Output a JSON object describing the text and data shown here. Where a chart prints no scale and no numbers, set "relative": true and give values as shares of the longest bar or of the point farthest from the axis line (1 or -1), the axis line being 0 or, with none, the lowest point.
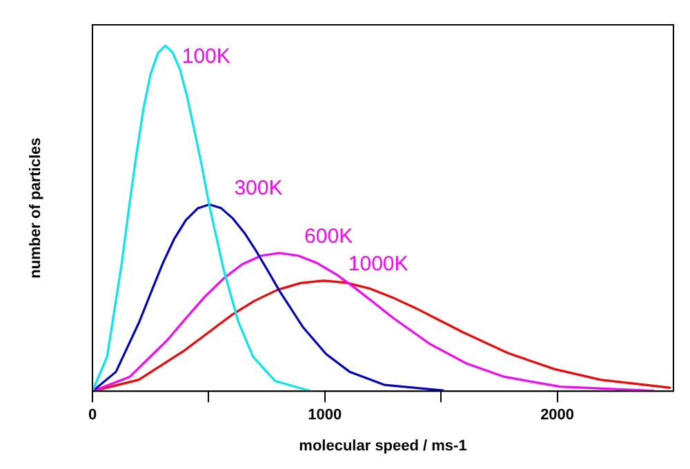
{
  "chart_data": {
    "type": "line",
    "relative": true,
    "xlabel": "molecular speed / ms-1",
    "ylabel": "number of particles",
    "xlim": [
      0,
      2500
    ],
    "xticks": [
      0,
      {
        "value": 500,
        "label": null
      },
      1000,
      {
        "value": 1500,
        "label": null
      },
      2000
    ],
    "tick_labels": "x",
    "grid": false,
    "legend": false,
    "marker": "none",
    "line_style": "solid",
    "series": [
      {
        "name": "100K",
        "color": "#00e8f0",
        "x": [
          0,
          63,
          126,
          157,
          188,
          220,
          251,
          283,
          314,
          345,
          377,
          408,
          440,
          471,
          502,
          565,
          628,
          691,
          785,
          942
        ],
        "values": [
          0,
          0.1,
          0.37,
          0.53,
          0.68,
          0.82,
          0.92,
          0.98,
          1,
          0.98,
          0.93,
          0.85,
          0.75,
          0.65,
          0.54,
          0.35,
          0.2,
          0.1,
          0.03,
          0.0
        ]
      },
      {
        "name": "300K",
        "color": "#0000d0",
        "x": [
          0,
          101,
          201,
          252,
          302,
          352,
          402,
          453,
          503,
          553,
          604,
          654,
          704,
          755,
          805,
          905,
          1006,
          1107,
          1258,
          1509
        ],
        "values": [
          0,
          0.056,
          0.2,
          0.286,
          0.369,
          0.441,
          0.495,
          0.529,
          0.54,
          0.53,
          0.5,
          0.458,
          0.406,
          0.348,
          0.29,
          0.186,
          0.107,
          0.056,
          0.018,
          0.002
        ]
      },
      {
        "name": "600K",
        "color": "#ff00ff",
        "x": [
          0,
          161,
          322,
          403,
          483,
          564,
          644,
          725,
          805,
          886,
          966,
          1047,
          1127,
          1208,
          1288,
          1449,
          1610,
          1771,
          2013,
          2415
        ],
        "values": [
          0,
          0.042,
          0.148,
          0.212,
          0.273,
          0.326,
          0.367,
          0.392,
          0.4,
          0.392,
          0.371,
          0.339,
          0.3,
          0.258,
          0.215,
          0.138,
          0.08,
          0.042,
          0.013,
          0.001
        ]
      },
      {
        "name": "1000K",
        "color": "#ff0000",
        "x": [
          0,
          199,
          398,
          497,
          596,
          696,
          795,
          895,
          994,
          1093,
          1193,
          1292,
          1392,
          1491,
          1590,
          1789,
          1988,
          2187,
          2485
        ],
        "values": [
          0,
          0.033,
          0.119,
          0.169,
          0.219,
          0.261,
          0.293,
          0.313,
          0.32,
          0.314,
          0.297,
          0.271,
          0.24,
          0.206,
          0.172,
          0.11,
          0.064,
          0.033,
          0.01
        ]
      }
    ]
  }
}
